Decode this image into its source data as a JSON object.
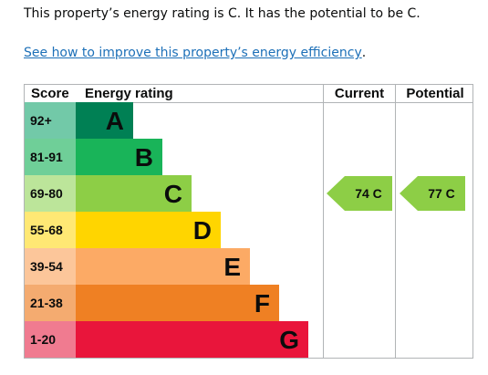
{
  "intro_text": "This property’s energy rating is C. It has the potential to be C.",
  "improve_link": "See how to improve this property’s energy efficiency",
  "improve_link_suffix": ".",
  "table": {
    "headers": {
      "score": "Score",
      "rating": "Energy rating",
      "current": "Current",
      "potential": "Potential"
    },
    "bands": [
      {
        "score": "92+",
        "letter": "A",
        "color": "#008054",
        "score_bg": "#72c9a8",
        "scale": 0
      },
      {
        "score": "81-91",
        "letter": "B",
        "color": "#19b459",
        "score_bg": "#6fcf98",
        "scale": 1
      },
      {
        "score": "69-80",
        "letter": "C",
        "color": "#8dce46",
        "score_bg": "#bce59a",
        "scale": 2
      },
      {
        "score": "55-68",
        "letter": "D",
        "color": "#ffd500",
        "score_bg": "#ffe874",
        "scale": 3
      },
      {
        "score": "39-54",
        "letter": "E",
        "color": "#fcaa65",
        "score_bg": "#fcc69a",
        "scale": 4
      },
      {
        "score": "21-38",
        "letter": "F",
        "color": "#ef8023",
        "score_bg": "#f4ab70",
        "scale": 5
      },
      {
        "score": "1-20",
        "letter": "G",
        "color": "#e9153b",
        "score_bg": "#f07b90",
        "scale": 6
      }
    ],
    "current": {
      "label": "74 C",
      "band_index": 2,
      "color": "#8dce46"
    },
    "potential": {
      "label": "77 C",
      "band_index": 2,
      "color": "#8dce46"
    }
  }
}
